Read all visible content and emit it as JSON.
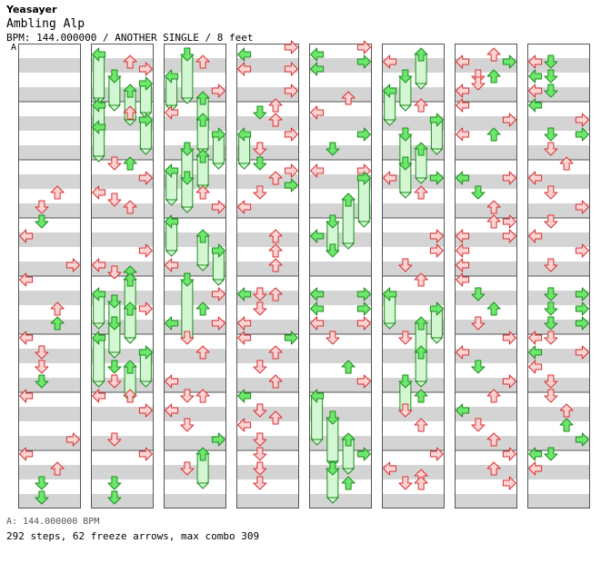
{
  "header": {
    "artist": "Yeasayer",
    "title": "Ambling Alp",
    "meta": "BPM: 144.000000 / ANOTHER SINGLE / 8 feet",
    "bpm_marker": "A"
  },
  "footer": {
    "bpm": "A: 144.000000 BPM",
    "stats": "292 steps, 62 freeze arrows, max combo 309"
  },
  "colors": {
    "stripe": "#d4d4d4",
    "measure_line": "#555555",
    "border": "#555555",
    "red_fill": "#fdd3d3",
    "red_stroke": "#d83030",
    "green_fill": "#6de86d",
    "green_stroke": "#1c8c1c",
    "freeze_fill": "#d2f7d2",
    "freeze_stroke": "#1c8c1c"
  },
  "chart_data": {
    "type": "step-chart",
    "columns": 8,
    "measures_per_column": 8,
    "lanes": [
      "left",
      "down",
      "up",
      "right"
    ],
    "notes": [
      [
        0,
        2,
        20,
        "r"
      ],
      [
        0,
        1,
        22,
        "r"
      ],
      [
        0,
        1,
        24,
        "g"
      ],
      [
        0,
        0,
        26,
        "r"
      ],
      [
        0,
        3,
        30,
        "r"
      ],
      [
        0,
        0,
        32,
        "r"
      ],
      [
        0,
        2,
        36,
        "r"
      ],
      [
        0,
        2,
        38,
        "g"
      ],
      [
        0,
        0,
        40,
        "r"
      ],
      [
        0,
        1,
        42,
        "r"
      ],
      [
        0,
        1,
        44,
        "r"
      ],
      [
        0,
        1,
        46,
        "g"
      ],
      [
        0,
        0,
        48,
        "r"
      ],
      [
        0,
        3,
        54,
        "r"
      ],
      [
        0,
        0,
        56,
        "r"
      ],
      [
        0,
        2,
        58,
        "r"
      ],
      [
        0,
        1,
        60,
        "g"
      ],
      [
        0,
        1,
        62,
        "g"
      ],
      [
        1,
        0,
        1,
        "g",
        3
      ],
      [
        1,
        2,
        2,
        "r"
      ],
      [
        1,
        3,
        3,
        "r"
      ],
      [
        1,
        1,
        4,
        "g",
        2
      ],
      [
        1,
        3,
        5,
        "g",
        2
      ],
      [
        1,
        2,
        6,
        "g",
        2
      ],
      [
        1,
        0,
        8,
        "g",
        2
      ],
      [
        1,
        2,
        9,
        "r"
      ],
      [
        1,
        3,
        10,
        "g",
        2
      ],
      [
        1,
        0,
        11,
        "g",
        2
      ],
      [
        1,
        1,
        16,
        "r"
      ],
      [
        1,
        2,
        16,
        "g"
      ],
      [
        1,
        3,
        18,
        "r"
      ],
      [
        1,
        0,
        20,
        "r"
      ],
      [
        1,
        1,
        21,
        "r"
      ],
      [
        1,
        2,
        22,
        "r"
      ],
      [
        1,
        3,
        28,
        "r"
      ],
      [
        1,
        0,
        30,
        "r"
      ],
      [
        1,
        1,
        31,
        "r"
      ],
      [
        1,
        2,
        31,
        "g"
      ],
      [
        1,
        2,
        32,
        "g",
        2
      ],
      [
        1,
        0,
        34,
        "g",
        2
      ],
      [
        1,
        1,
        35,
        "g",
        2
      ],
      [
        1,
        3,
        36,
        "r"
      ],
      [
        1,
        2,
        36,
        "g",
        2
      ],
      [
        1,
        1,
        38,
        "g",
        2
      ],
      [
        1,
        0,
        40,
        "g",
        3
      ],
      [
        1,
        3,
        42,
        "g",
        2
      ],
      [
        1,
        1,
        44,
        "g"
      ],
      [
        1,
        2,
        44,
        "g",
        2
      ],
      [
        1,
        1,
        46,
        "r"
      ],
      [
        1,
        0,
        48,
        "r"
      ],
      [
        1,
        2,
        48,
        "r"
      ],
      [
        1,
        3,
        50,
        "r"
      ],
      [
        1,
        1,
        54,
        "r"
      ],
      [
        1,
        3,
        56,
        "r"
      ],
      [
        1,
        1,
        60,
        "g"
      ],
      [
        1,
        1,
        62,
        "g"
      ],
      [
        2,
        1,
        1,
        "g",
        3
      ],
      [
        2,
        2,
        2,
        "r"
      ],
      [
        2,
        0,
        4,
        "g",
        2
      ],
      [
        2,
        3,
        6,
        "r"
      ],
      [
        2,
        2,
        7,
        "g",
        2
      ],
      [
        2,
        0,
        9,
        "r"
      ],
      [
        2,
        2,
        10,
        "g",
        2
      ],
      [
        2,
        3,
        12,
        "g",
        2
      ],
      [
        2,
        1,
        14,
        "g",
        2
      ],
      [
        2,
        2,
        15,
        "g",
        2
      ],
      [
        2,
        0,
        17,
        "g",
        2
      ],
      [
        2,
        1,
        18,
        "g",
        2
      ],
      [
        2,
        2,
        20,
        "r"
      ],
      [
        2,
        3,
        22,
        "r"
      ],
      [
        2,
        0,
        24,
        "g",
        2
      ],
      [
        2,
        2,
        26,
        "g",
        2
      ],
      [
        2,
        3,
        28,
        "g",
        2
      ],
      [
        2,
        0,
        30,
        "r"
      ],
      [
        2,
        1,
        32,
        "g",
        4
      ],
      [
        2,
        3,
        34,
        "r"
      ],
      [
        2,
        2,
        36,
        "g"
      ],
      [
        2,
        0,
        38,
        "g"
      ],
      [
        2,
        3,
        38,
        "r"
      ],
      [
        2,
        1,
        40,
        "r"
      ],
      [
        2,
        2,
        42,
        "r"
      ],
      [
        2,
        0,
        46,
        "r"
      ],
      [
        2,
        1,
        48,
        "r"
      ],
      [
        2,
        2,
        48,
        "r"
      ],
      [
        2,
        0,
        50,
        "r"
      ],
      [
        2,
        1,
        52,
        "r"
      ],
      [
        2,
        3,
        54,
        "g"
      ],
      [
        2,
        2,
        56,
        "g",
        2
      ],
      [
        2,
        1,
        58,
        "r"
      ],
      [
        3,
        0,
        1,
        "g"
      ],
      [
        3,
        3,
        0,
        "r"
      ],
      [
        3,
        0,
        3,
        "r"
      ],
      [
        3,
        3,
        3,
        "r"
      ],
      [
        3,
        3,
        6,
        "r"
      ],
      [
        3,
        2,
        8,
        "r"
      ],
      [
        3,
        1,
        9,
        "g"
      ],
      [
        3,
        2,
        10,
        "r"
      ],
      [
        3,
        0,
        12,
        "g",
        2
      ],
      [
        3,
        3,
        12,
        "r"
      ],
      [
        3,
        1,
        14,
        "r"
      ],
      [
        3,
        1,
        16,
        "g"
      ],
      [
        3,
        3,
        17,
        "r"
      ],
      [
        3,
        2,
        18,
        "r"
      ],
      [
        3,
        3,
        19,
        "g"
      ],
      [
        3,
        1,
        20,
        "r"
      ],
      [
        3,
        0,
        22,
        "r"
      ],
      [
        3,
        2,
        26,
        "r"
      ],
      [
        3,
        2,
        28,
        "r"
      ],
      [
        3,
        2,
        30,
        "r"
      ],
      [
        3,
        0,
        34,
        "g"
      ],
      [
        3,
        1,
        34,
        "r"
      ],
      [
        3,
        2,
        34,
        "r"
      ],
      [
        3,
        1,
        36,
        "r"
      ],
      [
        3,
        0,
        38,
        "r"
      ],
      [
        3,
        0,
        40,
        "r"
      ],
      [
        3,
        3,
        40,
        "g"
      ],
      [
        3,
        2,
        42,
        "r"
      ],
      [
        3,
        1,
        44,
        "r"
      ],
      [
        3,
        2,
        46,
        "r"
      ],
      [
        3,
        0,
        48,
        "g"
      ],
      [
        3,
        1,
        50,
        "r"
      ],
      [
        3,
        2,
        51,
        "r"
      ],
      [
        3,
        0,
        52,
        "r"
      ],
      [
        3,
        1,
        54,
        "r"
      ],
      [
        3,
        1,
        56,
        "r"
      ],
      [
        3,
        1,
        58,
        "r"
      ],
      [
        3,
        1,
        60,
        "r"
      ],
      [
        4,
        0,
        1,
        "g"
      ],
      [
        4,
        3,
        0,
        "r"
      ],
      [
        4,
        0,
        3,
        "g"
      ],
      [
        4,
        3,
        2,
        "g"
      ],
      [
        4,
        2,
        7,
        "r"
      ],
      [
        4,
        0,
        9,
        "r"
      ],
      [
        4,
        3,
        12,
        "g"
      ],
      [
        4,
        1,
        14,
        "g"
      ],
      [
        4,
        0,
        17,
        "r"
      ],
      [
        4,
        3,
        17,
        "r"
      ],
      [
        4,
        3,
        18,
        "g",
        3
      ],
      [
        4,
        2,
        21,
        "g",
        3
      ],
      [
        4,
        1,
        24,
        "g",
        2
      ],
      [
        4,
        0,
        26,
        "g"
      ],
      [
        4,
        1,
        28,
        "g"
      ],
      [
        4,
        0,
        34,
        "g"
      ],
      [
        4,
        3,
        34,
        "g"
      ],
      [
        4,
        0,
        36,
        "g"
      ],
      [
        4,
        3,
        36,
        "g"
      ],
      [
        4,
        0,
        38,
        "r"
      ],
      [
        4,
        3,
        38,
        "r"
      ],
      [
        4,
        1,
        40,
        "r"
      ],
      [
        4,
        2,
        44,
        "g"
      ],
      [
        4,
        3,
        46,
        "r"
      ],
      [
        4,
        0,
        48,
        "g",
        3
      ],
      [
        4,
        1,
        51,
        "g",
        3
      ],
      [
        4,
        2,
        54,
        "g",
        2
      ],
      [
        4,
        3,
        56,
        "g"
      ],
      [
        4,
        1,
        58,
        "g",
        2
      ],
      [
        4,
        2,
        60,
        "g"
      ],
      [
        5,
        0,
        2,
        "r"
      ],
      [
        5,
        2,
        1,
        "g",
        2
      ],
      [
        5,
        1,
        4,
        "g",
        2
      ],
      [
        5,
        0,
        6,
        "g",
        2
      ],
      [
        5,
        2,
        8,
        "r"
      ],
      [
        5,
        3,
        10,
        "g",
        2
      ],
      [
        5,
        1,
        12,
        "g",
        2
      ],
      [
        5,
        2,
        14,
        "g",
        2
      ],
      [
        5,
        1,
        16,
        "g",
        2
      ],
      [
        5,
        0,
        18,
        "r"
      ],
      [
        5,
        2,
        20,
        "r"
      ],
      [
        5,
        3,
        18,
        "g"
      ],
      [
        5,
        3,
        26,
        "r"
      ],
      [
        5,
        3,
        28,
        "r"
      ],
      [
        5,
        1,
        30,
        "r"
      ],
      [
        5,
        2,
        32,
        "r"
      ],
      [
        5,
        0,
        34,
        "g",
        2
      ],
      [
        5,
        3,
        36,
        "g",
        2
      ],
      [
        5,
        2,
        38,
        "g",
        2
      ],
      [
        5,
        1,
        40,
        "r"
      ],
      [
        5,
        2,
        42,
        "g",
        2
      ],
      [
        5,
        1,
        46,
        "g",
        2
      ],
      [
        5,
        2,
        48,
        "g"
      ],
      [
        5,
        1,
        50,
        "r"
      ],
      [
        5,
        2,
        52,
        "r"
      ],
      [
        5,
        3,
        56,
        "r"
      ],
      [
        5,
        0,
        58,
        "r"
      ],
      [
        5,
        2,
        59,
        "r"
      ],
      [
        5,
        1,
        60,
        "r"
      ],
      [
        5,
        2,
        60,
        "r"
      ],
      [
        6,
        0,
        2,
        "r"
      ],
      [
        6,
        2,
        1,
        "r"
      ],
      [
        6,
        3,
        2,
        "g"
      ],
      [
        6,
        1,
        4,
        "r"
      ],
      [
        6,
        2,
        4,
        "g"
      ],
      [
        6,
        0,
        6,
        "r"
      ],
      [
        6,
        1,
        5,
        "r"
      ],
      [
        6,
        0,
        8,
        "r"
      ],
      [
        6,
        3,
        10,
        "r"
      ],
      [
        6,
        0,
        12,
        "r"
      ],
      [
        6,
        2,
        12,
        "g"
      ],
      [
        6,
        0,
        18,
        "g"
      ],
      [
        6,
        1,
        20,
        "g"
      ],
      [
        6,
        3,
        18,
        "r"
      ],
      [
        6,
        2,
        22,
        "r"
      ],
      [
        6,
        2,
        24,
        "r"
      ],
      [
        6,
        3,
        24,
        "r"
      ],
      [
        6,
        0,
        26,
        "r"
      ],
      [
        6,
        0,
        28,
        "r"
      ],
      [
        6,
        3,
        26,
        "r"
      ],
      [
        6,
        0,
        30,
        "r"
      ],
      [
        6,
        0,
        32,
        "r"
      ],
      [
        6,
        1,
        34,
        "g"
      ],
      [
        6,
        2,
        36,
        "g"
      ],
      [
        6,
        1,
        38,
        "r"
      ],
      [
        6,
        3,
        40,
        "r"
      ],
      [
        6,
        0,
        42,
        "r"
      ],
      [
        6,
        1,
        44,
        "g"
      ],
      [
        6,
        3,
        46,
        "r"
      ],
      [
        6,
        2,
        48,
        "r"
      ],
      [
        6,
        0,
        50,
        "g"
      ],
      [
        6,
        1,
        52,
        "r"
      ],
      [
        6,
        2,
        54,
        "r"
      ],
      [
        6,
        3,
        56,
        "r"
      ],
      [
        6,
        2,
        58,
        "r"
      ],
      [
        6,
        3,
        60,
        "r"
      ],
      [
        7,
        0,
        2,
        "r"
      ],
      [
        7,
        1,
        2,
        "g"
      ],
      [
        7,
        0,
        4,
        "g"
      ],
      [
        7,
        1,
        4,
        "g"
      ],
      [
        7,
        0,
        6,
        "r"
      ],
      [
        7,
        1,
        6,
        "g"
      ],
      [
        7,
        0,
        8,
        "g"
      ],
      [
        7,
        3,
        10,
        "r"
      ],
      [
        7,
        1,
        12,
        "g"
      ],
      [
        7,
        3,
        12,
        "g"
      ],
      [
        7,
        1,
        14,
        "r"
      ],
      [
        7,
        2,
        16,
        "r"
      ],
      [
        7,
        0,
        18,
        "r"
      ],
      [
        7,
        1,
        20,
        "r"
      ],
      [
        7,
        3,
        22,
        "r"
      ],
      [
        7,
        1,
        24,
        "r"
      ],
      [
        7,
        0,
        26,
        "r"
      ],
      [
        7,
        3,
        28,
        "r"
      ],
      [
        7,
        1,
        30,
        "r"
      ],
      [
        7,
        1,
        34,
        "g"
      ],
      [
        7,
        3,
        34,
        "g"
      ],
      [
        7,
        1,
        36,
        "g"
      ],
      [
        7,
        3,
        36,
        "g"
      ],
      [
        7,
        1,
        38,
        "g"
      ],
      [
        7,
        3,
        38,
        "g"
      ],
      [
        7,
        0,
        40,
        "r"
      ],
      [
        7,
        1,
        40,
        "r"
      ],
      [
        7,
        0,
        42,
        "g"
      ],
      [
        7,
        3,
        42,
        "r"
      ],
      [
        7,
        0,
        44,
        "r"
      ],
      [
        7,
        1,
        46,
        "r"
      ],
      [
        7,
        1,
        48,
        "r"
      ],
      [
        7,
        2,
        50,
        "r"
      ],
      [
        7,
        2,
        52,
        "g"
      ],
      [
        7,
        3,
        54,
        "g"
      ],
      [
        7,
        0,
        56,
        "g"
      ],
      [
        7,
        1,
        56,
        "g"
      ],
      [
        7,
        0,
        58,
        "r"
      ]
    ]
  }
}
